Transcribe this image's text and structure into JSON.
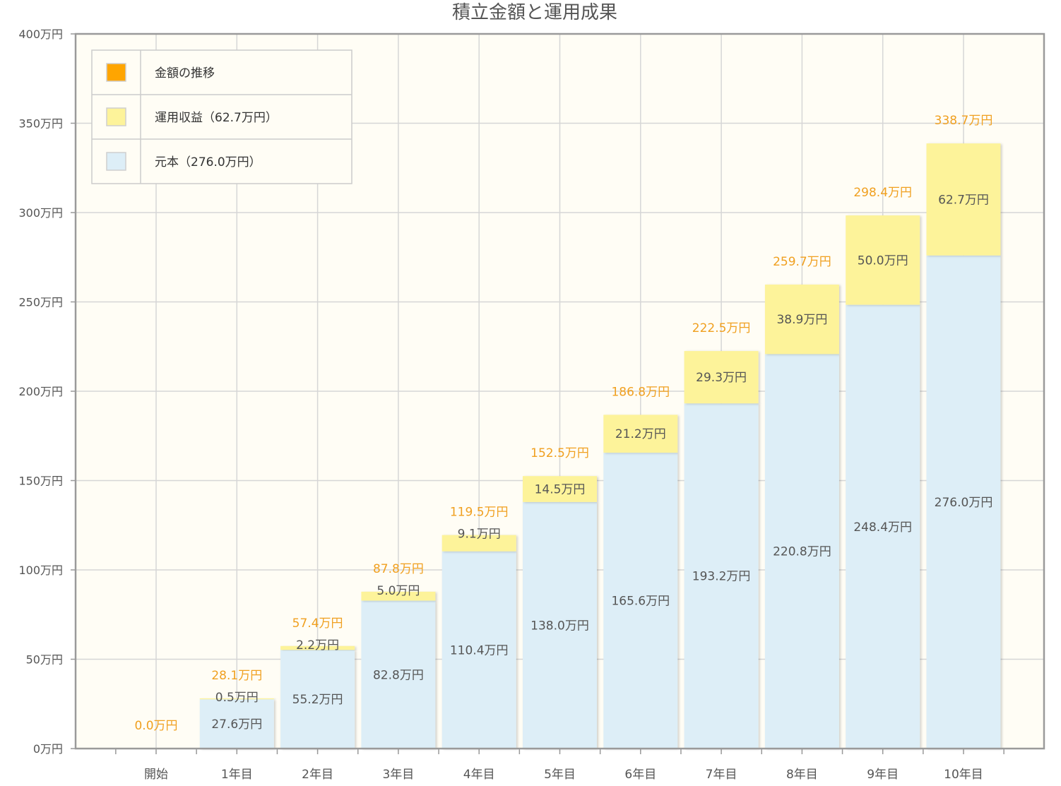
{
  "chart_data": {
    "type": "bar",
    "stacked": true,
    "title": "積立金額と運用成果",
    "categories": [
      "開始",
      "1年目",
      "2年目",
      "3年目",
      "4年目",
      "5年目",
      "6年目",
      "7年目",
      "8年目",
      "9年目",
      "10年目"
    ],
    "series": [
      {
        "name": "元本（276.0万円）",
        "color": "#ddeef7",
        "values": [
          0,
          27.6,
          55.2,
          82.8,
          110.4,
          138.0,
          165.6,
          193.2,
          220.8,
          248.4,
          276.0
        ],
        "labels": [
          "",
          "27.6万円",
          "55.2万円",
          "82.8万円",
          "110.4万円",
          "138.0万円",
          "165.6万円",
          "193.2万円",
          "220.8万円",
          "248.4万円",
          "276.0万円"
        ]
      },
      {
        "name": "運用収益（62.7万円）",
        "color": "#fdf39a",
        "values": [
          0,
          0.5,
          2.2,
          5.0,
          9.1,
          14.5,
          21.2,
          29.3,
          38.9,
          50.0,
          62.7
        ],
        "labels": [
          "",
          "0.5万円",
          "2.2万円",
          "5.0万円",
          "9.1万円",
          "14.5万円",
          "21.2万円",
          "29.3万円",
          "38.9万円",
          "50.0万円",
          "62.7万円"
        ]
      }
    ],
    "totals": {
      "name": "金額の推移",
      "color": "#ffa500",
      "values": [
        0,
        28.1,
        57.4,
        87.8,
        119.5,
        152.5,
        186.8,
        222.5,
        259.7,
        298.4,
        338.7
      ],
      "labels": [
        "0.0万円",
        "28.1万円",
        "57.4万円",
        "87.8万円",
        "119.5万円",
        "152.5万円",
        "186.8万円",
        "222.5万円",
        "259.7万円",
        "298.4万円",
        "338.7万円"
      ]
    },
    "ylim": [
      0,
      400
    ],
    "yticks": [
      0,
      50,
      100,
      150,
      200,
      250,
      300,
      350,
      400
    ],
    "ytick_labels": [
      "0万円",
      "50万円",
      "100万円",
      "150万円",
      "200万円",
      "250万円",
      "300万円",
      "350万円",
      "400万円"
    ],
    "grid": true,
    "legend_position": "top-left",
    "legend": [
      {
        "label": "金額の推移",
        "color": "#ffa500"
      },
      {
        "label": "運用収益（62.7万円）",
        "color": "#fdf39a"
      },
      {
        "label": "元本（276.0万円）",
        "color": "#ddeef7"
      }
    ],
    "colors": {
      "plot_background": "#fffdf5",
      "total_label": "#f0a020",
      "value_label": "#555555"
    }
  }
}
